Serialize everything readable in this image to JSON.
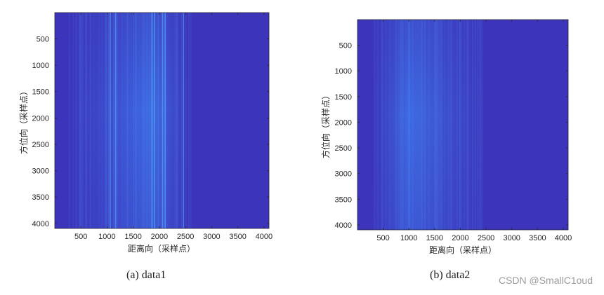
{
  "chart_data": [
    {
      "type": "heatmap",
      "caption": "(a) data1",
      "xlabel": "距离向（采样点）",
      "ylabel": "方位向（采样点）",
      "xlim": [
        1,
        4096
      ],
      "ylim": [
        1,
        4096
      ],
      "y_reversed": true,
      "xticks": [
        500,
        1000,
        1500,
        2000,
        2500,
        3000,
        3500,
        4000
      ],
      "yticks": [
        500,
        1000,
        1500,
        2000,
        2500,
        3000,
        3500,
        4000
      ],
      "colormap": "parula (low end)",
      "background_color": "#3c34bb",
      "bright_region_x_range": [
        250,
        2600
      ],
      "bright_center_x": 1850,
      "bright_streaks_x": [
        1050,
        1150,
        1850,
        1900,
        2050,
        2100,
        2450
      ]
    },
    {
      "type": "heatmap",
      "caption": "(b) data2",
      "xlabel": "距离向（采样点）",
      "ylabel": "方位向（采样点）",
      "xlim": [
        1,
        4096
      ],
      "ylim": [
        1,
        4096
      ],
      "y_reversed": true,
      "xticks": [
        500,
        1000,
        1500,
        2000,
        2500,
        3000,
        3500,
        4000
      ],
      "yticks": [
        500,
        1000,
        1500,
        2000,
        2500,
        3000,
        3500,
        4000
      ],
      "colormap": "parula (low end)",
      "background_color": "#3c34bb",
      "bright_region_x_range": [
        300,
        2500
      ],
      "bright_center_x": 1000,
      "bright_streaks_x": []
    }
  ],
  "watermark": "CSDN @SmallC1oud"
}
